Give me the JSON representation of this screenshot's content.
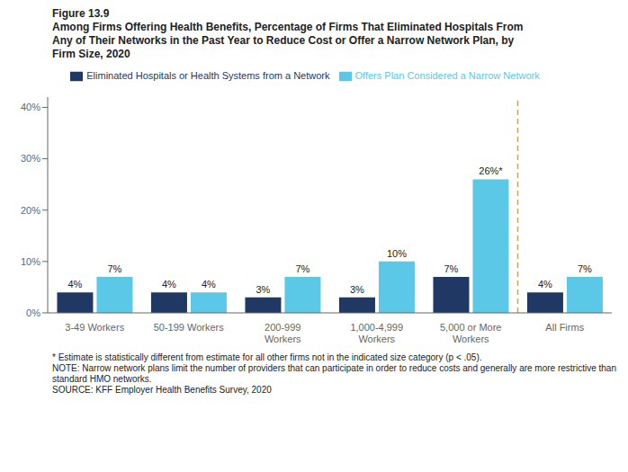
{
  "chart_data": {
    "type": "bar",
    "title": "Figure 13.9",
    "subtitle": [
      "Among Firms Offering Health Benefits, Percentage of Firms That Eliminated Hospitals From",
      "Any of Their Networks in the Past Year to Reduce Cost or Offer a Narrow Network Plan, by",
      "Firm Size, 2020"
    ],
    "categories": [
      "3-49 Workers",
      "50-199 Workers",
      "200-999 Workers",
      "1,000-4,999 Workers",
      "5,000 or More\nWorkers",
      "All Firms"
    ],
    "series": [
      {
        "name": "Eliminated Hospitals or Health Systems from a Network",
        "color": "#1f3864",
        "values": [
          4,
          4,
          3,
          3,
          7,
          4
        ],
        "value_labels": [
          "4%",
          "4%",
          "3%",
          "3%",
          "7%",
          "4%"
        ]
      },
      {
        "name": "Offers Plan Considered a Narrow Network",
        "color": "#5bc8e8",
        "values": [
          7,
          4,
          7,
          10,
          26,
          7
        ],
        "value_labels": [
          "7%",
          "4%",
          "7%",
          "10%",
          "26%*",
          "7%"
        ]
      }
    ],
    "ylim": [
      0,
      42
    ],
    "yticks": [
      {
        "value": 0,
        "label": "0%"
      },
      {
        "value": 10,
        "label": "10%"
      },
      {
        "value": 20,
        "label": "20%"
      },
      {
        "value": 30,
        "label": "30%"
      },
      {
        "value": 40,
        "label": "40%"
      }
    ],
    "grid": false,
    "legend": "top",
    "data_labels": true,
    "reference_lines": [
      {
        "between": [
          "5,000 or More\nWorkers",
          "All Firms"
        ],
        "color": "#e8a020",
        "line_style": "dashed"
      }
    ],
    "annotations": [
      "* Estimate is statistically different from estimate for all other firms not in the indicated size category (p < .05).",
      "NOTE: Narrow network plans limit the number of providers that can participate in order to reduce costs and generally are more restrictive than",
      "standard HMO networks.",
      "SOURCE: KFF Employer Health Benefits Survey, 2020"
    ]
  }
}
